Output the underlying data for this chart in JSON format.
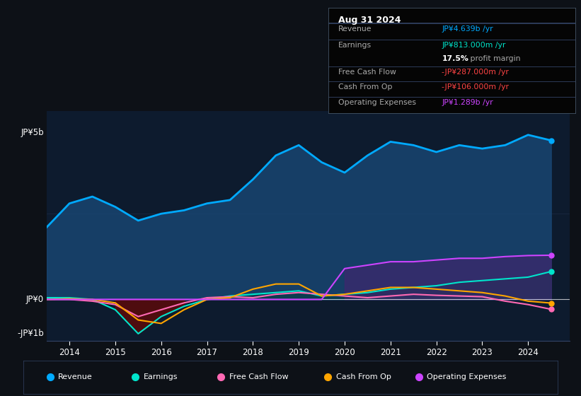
{
  "bg_color": "#0d1117",
  "chart_bg": "#0d1b2e",
  "ylabel_top": "JP¥5b",
  "ylabel_zero": "JP¥0",
  "ylabel_neg": "-JP¥1b",
  "info_box": {
    "date": "Aug 31 2024",
    "revenue_label": "Revenue",
    "revenue_val": "JP¥4.639b /yr",
    "earnings_label": "Earnings",
    "earnings_val": "JP¥813.000m /yr",
    "margin_val": "17.5% profit margin",
    "fcf_label": "Free Cash Flow",
    "fcf_val": "-JP¥287.000m /yr",
    "cop_label": "Cash From Op",
    "cop_val": "-JP¥106.000m /yr",
    "opex_label": "Operating Expenses",
    "opex_val": "JP¥1.289b /yr"
  },
  "legend": [
    "Revenue",
    "Earnings",
    "Free Cash Flow",
    "Cash From Op",
    "Operating Expenses"
  ],
  "legend_colors": [
    "#00aaff",
    "#00e5cc",
    "#ff69b4",
    "#ffa500",
    "#cc44ff"
  ],
  "years": [
    2013.5,
    2014.0,
    2014.5,
    2015.0,
    2015.5,
    2016.0,
    2016.5,
    2017.0,
    2017.5,
    2018.0,
    2018.5,
    2019.0,
    2019.5,
    2020.0,
    2020.5,
    2021.0,
    2021.5,
    2022.0,
    2022.5,
    2023.0,
    2023.5,
    2024.0,
    2024.5
  ],
  "revenue": [
    2.1,
    2.8,
    3.0,
    2.7,
    2.3,
    2.5,
    2.6,
    2.8,
    2.9,
    3.5,
    4.2,
    4.5,
    4.0,
    3.7,
    4.2,
    4.6,
    4.5,
    4.3,
    4.5,
    4.4,
    4.5,
    4.8,
    4.639
  ],
  "earnings": [
    0.05,
    0.05,
    0.0,
    -0.3,
    -1.0,
    -0.5,
    -0.2,
    0.0,
    0.1,
    0.15,
    0.2,
    0.25,
    0.1,
    0.15,
    0.2,
    0.3,
    0.35,
    0.4,
    0.5,
    0.55,
    0.6,
    0.65,
    0.813
  ],
  "fcf": [
    0.0,
    0.0,
    -0.05,
    -0.15,
    -0.5,
    -0.3,
    -0.1,
    0.05,
    0.08,
    0.05,
    0.15,
    0.2,
    0.15,
    0.1,
    0.05,
    0.1,
    0.15,
    0.12,
    0.1,
    0.08,
    -0.05,
    -0.15,
    -0.287
  ],
  "cash_from_op": [
    0.0,
    0.02,
    0.0,
    -0.1,
    -0.6,
    -0.7,
    -0.3,
    0.0,
    0.05,
    0.3,
    0.45,
    0.45,
    0.1,
    0.15,
    0.25,
    0.35,
    0.35,
    0.3,
    0.25,
    0.2,
    0.1,
    -0.05,
    -0.106
  ],
  "op_expenses": [
    0.0,
    0.0,
    0.0,
    0.0,
    0.0,
    0.0,
    0.0,
    0.0,
    0.0,
    0.0,
    0.0,
    0.0,
    0.0,
    0.9,
    1.0,
    1.1,
    1.1,
    1.15,
    1.2,
    1.2,
    1.25,
    1.28,
    1.289
  ],
  "ylim": [
    -1.2,
    5.5
  ],
  "xlim": [
    2013.5,
    2024.9
  ],
  "revenue_color": "#00aaff",
  "earnings_color": "#00e5cc",
  "fcf_color": "#ff69b4",
  "cash_from_op_color": "#ffa500",
  "op_expenses_color": "#cc44ff",
  "revenue_fill_color": "#1a4a7a",
  "earnings_fill_pos_color": "#003a3a",
  "earnings_fill_neg_color": "#5a0a0a",
  "op_expenses_fill_color": "#4a2070"
}
